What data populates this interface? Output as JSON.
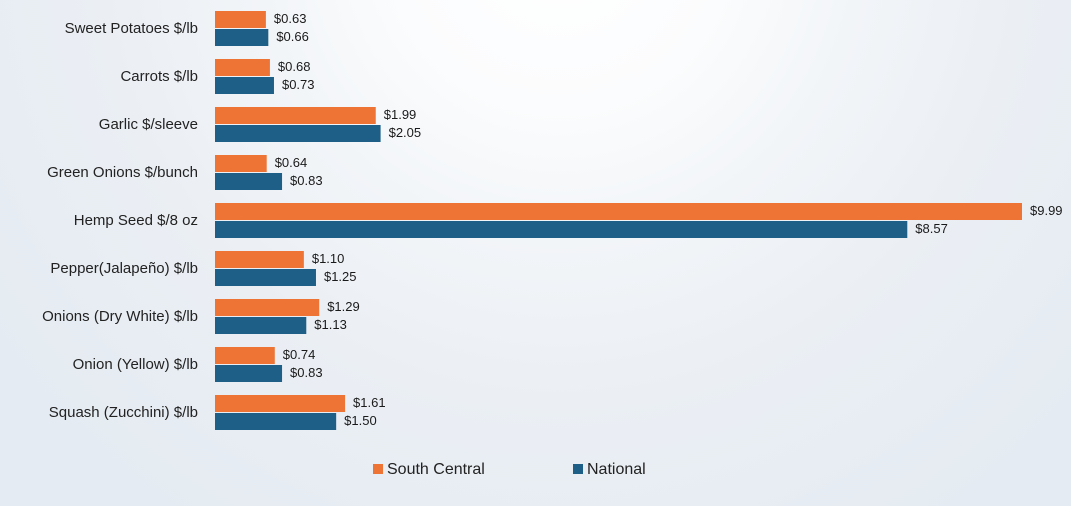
{
  "chart_data": {
    "type": "bar",
    "orientation": "horizontal",
    "categories": [
      "Sweet Potatoes $/lb",
      "Carrots $/lb",
      "Garlic $/sleeve",
      "Green Onions $/bunch",
      "Hemp Seed $/8 oz",
      "Pepper(Jalapeño) $/lb",
      "Onions (Dry White) $/lb",
      "Onion (Yellow) $/lb",
      "Squash (Zucchini) $/lb"
    ],
    "series": [
      {
        "name": "South Central",
        "color": "#ed7434",
        "values": [
          0.63,
          0.68,
          1.99,
          0.64,
          9.99,
          1.1,
          1.29,
          0.74,
          1.61
        ],
        "labels": [
          "$0.63",
          "$0.68",
          "$1.99",
          "$0.64",
          "$9.99",
          "$1.10",
          "$1.29",
          "$0.74",
          "$1.61"
        ]
      },
      {
        "name": "National",
        "color": "#1d5f86",
        "values": [
          0.66,
          0.73,
          2.05,
          0.83,
          8.57,
          1.25,
          1.13,
          0.83,
          1.5
        ],
        "labels": [
          "$0.66",
          "$0.73",
          "$2.05",
          "$0.83",
          "$8.57",
          "$1.25",
          "$1.13",
          "$0.83",
          "$1.50"
        ]
      }
    ],
    "xlim": [
      0,
      10
    ],
    "legend_position": "bottom"
  }
}
